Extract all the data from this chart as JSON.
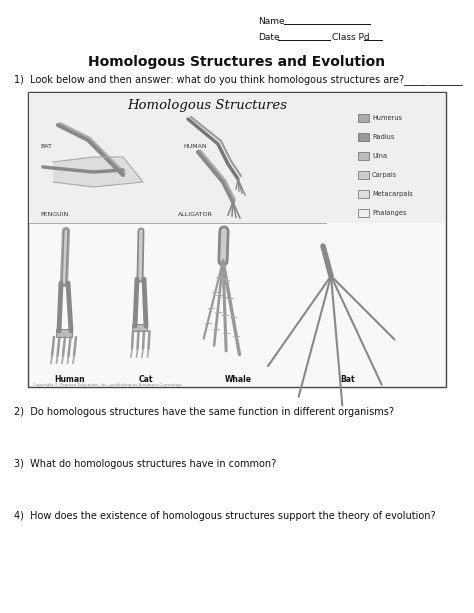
{
  "title": "Homologous Structures and Evolution",
  "name_label": "Name",
  "date_label": "Date",
  "class_label": "Class Pd",
  "q1": "1)  Look below and then answer: what do you think homologous structures are?____________",
  "q2": "2)  Do homologous structures have the same function in different organisms?",
  "q3": "3)  What do homologous structures have in common?",
  "q4": "4)  How does the existence of homologous structures support the theory of evolution?",
  "bg_color": "#ffffff",
  "text_color": "#111111",
  "image_box_title": "Homologous Structures",
  "legend_items": [
    "Humerus",
    "Radius",
    "Ulna",
    "Carpals",
    "Metacarpals",
    "Phalanges"
  ],
  "legend_grays": [
    "#aaaaaa",
    "#999999",
    "#bbbbbb",
    "#cccccc",
    "#dddddd",
    "#eeeeee"
  ],
  "figsize": [
    4.74,
    6.13
  ],
  "dpi": 100
}
